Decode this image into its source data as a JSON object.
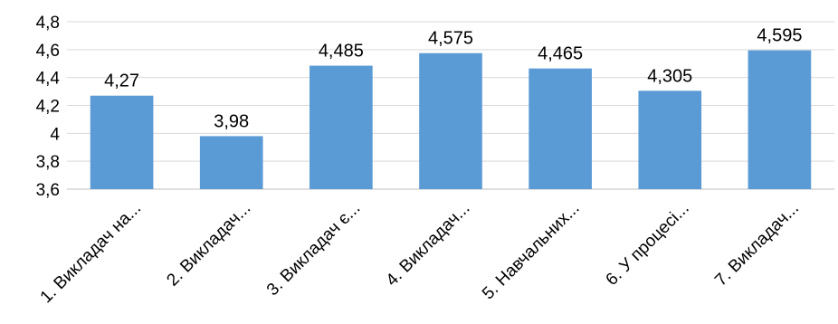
{
  "chart_data": {
    "type": "bar",
    "categories": [
      "1. Викладач на...",
      "2. Викладач...",
      "3. Викладач є...",
      "4. Викладач...",
      "5. Навчальних...",
      "6. У процесі...",
      "7. Викладач..."
    ],
    "values": [
      4.27,
      3.98,
      4.485,
      4.575,
      4.465,
      4.305,
      4.595
    ],
    "value_labels": [
      "4,27",
      "3,98",
      "4,485",
      "4,575",
      "4,465",
      "4,305",
      "4,595"
    ],
    "y_ticks": [
      3.6,
      3.8,
      4,
      4.2,
      4.4,
      4.6,
      4.8
    ],
    "y_tick_labels": [
      "3,6",
      "3,8",
      "4",
      "4,2",
      "4,4",
      "4,6",
      "4,8"
    ],
    "ylim": [
      3.6,
      4.8
    ],
    "grid": true,
    "legend": "none",
    "colors": {
      "bar": "#5b9bd5",
      "grid": "#d9d9d9",
      "axis": "#bfbfbf"
    }
  }
}
